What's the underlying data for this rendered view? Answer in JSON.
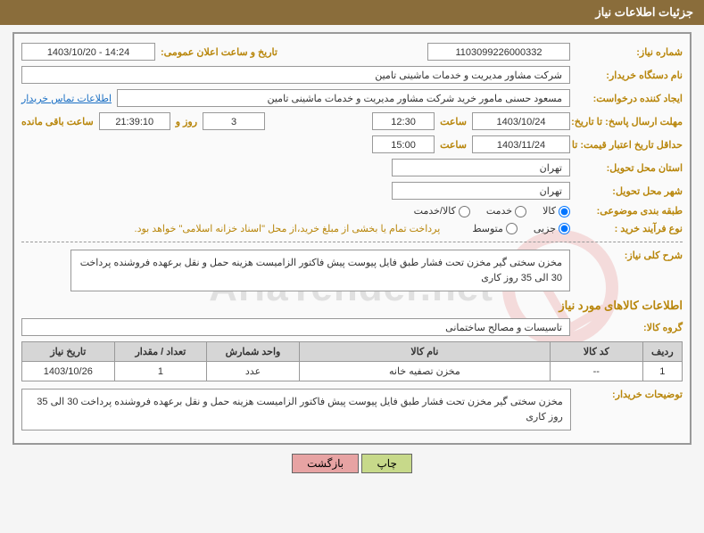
{
  "header": {
    "title": "جزئیات اطلاعات نیاز"
  },
  "fields": {
    "need_no_label": "شماره نیاز:",
    "need_no": "1103099226000332",
    "announce_dt_label": "تاریخ و ساعت اعلان عمومی:",
    "announce_dt": "14:24 - 1403/10/20",
    "buyer_org_label": "نام دستگاه خریدار:",
    "buyer_org": "شرکت مشاور مدیریت و خدمات ماشینی تامین",
    "requester_label": "ایجاد کننده درخواست:",
    "requester": "مسعود حسنی مامور خرید شرکت مشاور مدیریت و خدمات ماشینی تامین",
    "buyer_contact_link": "اطلاعات تماس خریدار",
    "resp_deadline_label": "مهلت ارسال پاسخ: تا تاریخ:",
    "resp_date": "1403/10/24",
    "time_label": "ساعت",
    "resp_time": "12:30",
    "days": "3",
    "days_and": "روز و",
    "countdown": "21:39:10",
    "remain_label": "ساعت باقی مانده",
    "price_validity_label": "حداقل تاریخ اعتبار قیمت: تا تاریخ:",
    "price_date": "1403/11/24",
    "price_time": "15:00",
    "delivery_province_label": "استان محل تحویل:",
    "delivery_province": "تهران",
    "delivery_city_label": "شهر محل تحویل:",
    "delivery_city": "تهران",
    "category_label": "طبقه بندی موضوعی:",
    "cat_goods": "کالا",
    "cat_service": "خدمت",
    "cat_goods_service": "کالا/خدمت",
    "process_label": "نوع فرآیند خرید :",
    "proc_minor": "جزیی",
    "proc_medium": "متوسط",
    "payment_note": "پرداخت تمام یا بخشی از مبلغ خرید،از محل \"اسناد خزانه اسلامی\" خواهد بود.",
    "general_desc_label": "شرح کلی نیاز:",
    "general_desc": "مخزن سختی گیر  مخزن تحت فشار  طبق فایل پیوست  پیش فاکتور الزامیست هزینه حمل و نقل برعهده فروشنده  پرداخت 30 الی 35 روز کاری",
    "goods_section_title": "اطلاعات کالاهای مورد نیاز",
    "goods_group_label": "گروه کالا:",
    "goods_group": "تاسیسات و مصالح ساختمانی",
    "buyer_notes_label": "توضیحات خریدار:",
    "buyer_notes": "مخزن سختی گیر  مخزن تحت فشار  طبق فایل پیوست  پیش فاکتور الزامیست هزینه حمل و نقل برعهده فروشنده  پرداخت 30 الی 35 روز کاری"
  },
  "table": {
    "columns": [
      "ردیف",
      "کد کالا",
      "نام کالا",
      "واحد شمارش",
      "تعداد / مقدار",
      "تاریخ نیاز"
    ],
    "col_widths": [
      "6%",
      "14%",
      "38%",
      "14%",
      "14%",
      "14%"
    ],
    "rows": [
      [
        "1",
        "--",
        "مخزن تصفیه خانه",
        "عدد",
        "1",
        "1403/10/26"
      ]
    ]
  },
  "buttons": {
    "print": "چاپ",
    "back": "بازگشت"
  },
  "watermark_text": "AriaTender.net",
  "style": {
    "header_bg": "#8a6d3b",
    "label_color": "#b8860b",
    "border_color": "#999999",
    "th_bg": "#d6d6d6",
    "link_color": "#1a6fc4"
  }
}
